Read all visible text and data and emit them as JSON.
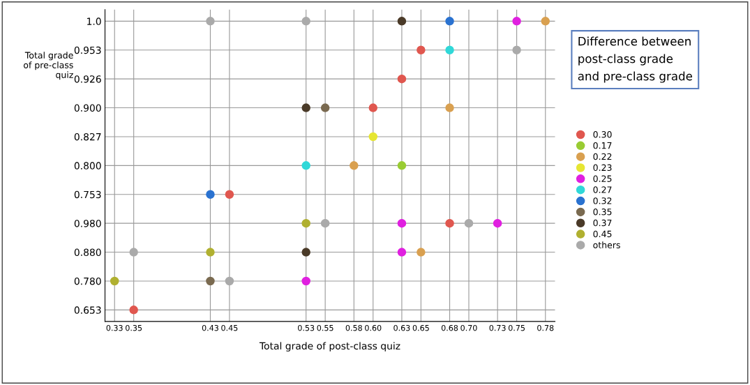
{
  "chart_data": {
    "type": "scatter",
    "orientation": "horizontal",
    "xlabel": "Total grade of post-class quiz",
    "ylabel": "Total grade\nof pre-class\nquiz",
    "legend_title": "Difference between\npost-class grade\nand pre-class grade",
    "categories": [
      "1.0",
      "0.953",
      "0.926",
      "0.900",
      "0.827",
      "0.800",
      "0.753",
      "0.980",
      "0.880",
      "0.780",
      "0.653"
    ],
    "xlim": [
      0.32,
      0.79
    ],
    "xticks": [
      {
        "value": 0.33,
        "label": "0.33"
      },
      {
        "value": 0.35,
        "label": "0.35"
      },
      {
        "value": 0.43,
        "label": "0.43"
      },
      {
        "value": 0.45,
        "label": "0.45"
      },
      {
        "value": 0.53,
        "label": "0.53"
      },
      {
        "value": 0.55,
        "label": "0.55"
      },
      {
        "value": 0.58,
        "label": "0.58"
      },
      {
        "value": 0.6,
        "label": "0.60"
      },
      {
        "value": 0.63,
        "label": "0.63"
      },
      {
        "value": 0.65,
        "label": "0.65"
      },
      {
        "value": 0.68,
        "label": "0.68"
      },
      {
        "value": 0.7,
        "label": "0.70"
      },
      {
        "value": 0.73,
        "label": "0.73"
      },
      {
        "value": 0.75,
        "label": "0.75"
      },
      {
        "value": 0.78,
        "label": "0.78"
      }
    ],
    "series": [
      {
        "name": "0.30",
        "color": "#e0574f",
        "values": [
          null,
          0.65,
          0.63,
          0.6,
          null,
          null,
          0.45,
          0.68,
          null,
          null,
          0.35
        ]
      },
      {
        "name": "0.17",
        "color": "#99cc33",
        "values": [
          null,
          null,
          null,
          null,
          null,
          0.63,
          null,
          null,
          null,
          null,
          null
        ]
      },
      {
        "name": "0.22",
        "color": "#d9a050",
        "values": [
          0.78,
          null,
          null,
          0.68,
          null,
          0.58,
          null,
          null,
          0.65,
          null,
          null
        ]
      },
      {
        "name": "0.23",
        "color": "#e6e633",
        "values": [
          null,
          null,
          null,
          null,
          0.6,
          null,
          null,
          null,
          null,
          null,
          null
        ]
      },
      {
        "name": "0.25",
        "color": "#e020e0",
        "values": [
          0.75,
          null,
          null,
          null,
          null,
          null,
          null,
          0.63,
          0.63,
          0.53,
          null
        ]
      },
      {
        "color": "#e020e0",
        "values": [
          null,
          null,
          null,
          null,
          null,
          null,
          null,
          0.73,
          null,
          null,
          null
        ]
      },
      {
        "name": "0.27",
        "color": "#30d8d8",
        "values": [
          null,
          0.68,
          null,
          null,
          null,
          0.53,
          null,
          null,
          null,
          null,
          null
        ]
      },
      {
        "name": "0.32",
        "color": "#2a72d0",
        "values": [
          0.68,
          null,
          null,
          null,
          null,
          null,
          0.43,
          null,
          null,
          null,
          null
        ]
      },
      {
        "name": "0.35",
        "color": "#7a6a50",
        "values": [
          null,
          null,
          null,
          0.55,
          null,
          null,
          null,
          null,
          null,
          0.43,
          null
        ]
      },
      {
        "name": "0.37",
        "color": "#4a3a28",
        "values": [
          0.63,
          null,
          null,
          0.53,
          null,
          null,
          null,
          null,
          0.53,
          null,
          null
        ]
      },
      {
        "name": "0.45",
        "color": "#b0b030",
        "values": [
          null,
          null,
          null,
          null,
          null,
          null,
          null,
          0.53,
          0.43,
          0.33,
          null
        ]
      },
      {
        "name": "others",
        "color": "#aaaaaa",
        "values": [
          0.43,
          0.75,
          null,
          null,
          null,
          null,
          null,
          0.55,
          0.35,
          0.45,
          null
        ]
      },
      {
        "color": "#aaaaaa",
        "values": [
          0.53,
          null,
          null,
          null,
          null,
          null,
          null,
          0.7,
          null,
          null,
          null
        ]
      }
    ],
    "marker": "circle",
    "grid": true,
    "legend": "right"
  }
}
